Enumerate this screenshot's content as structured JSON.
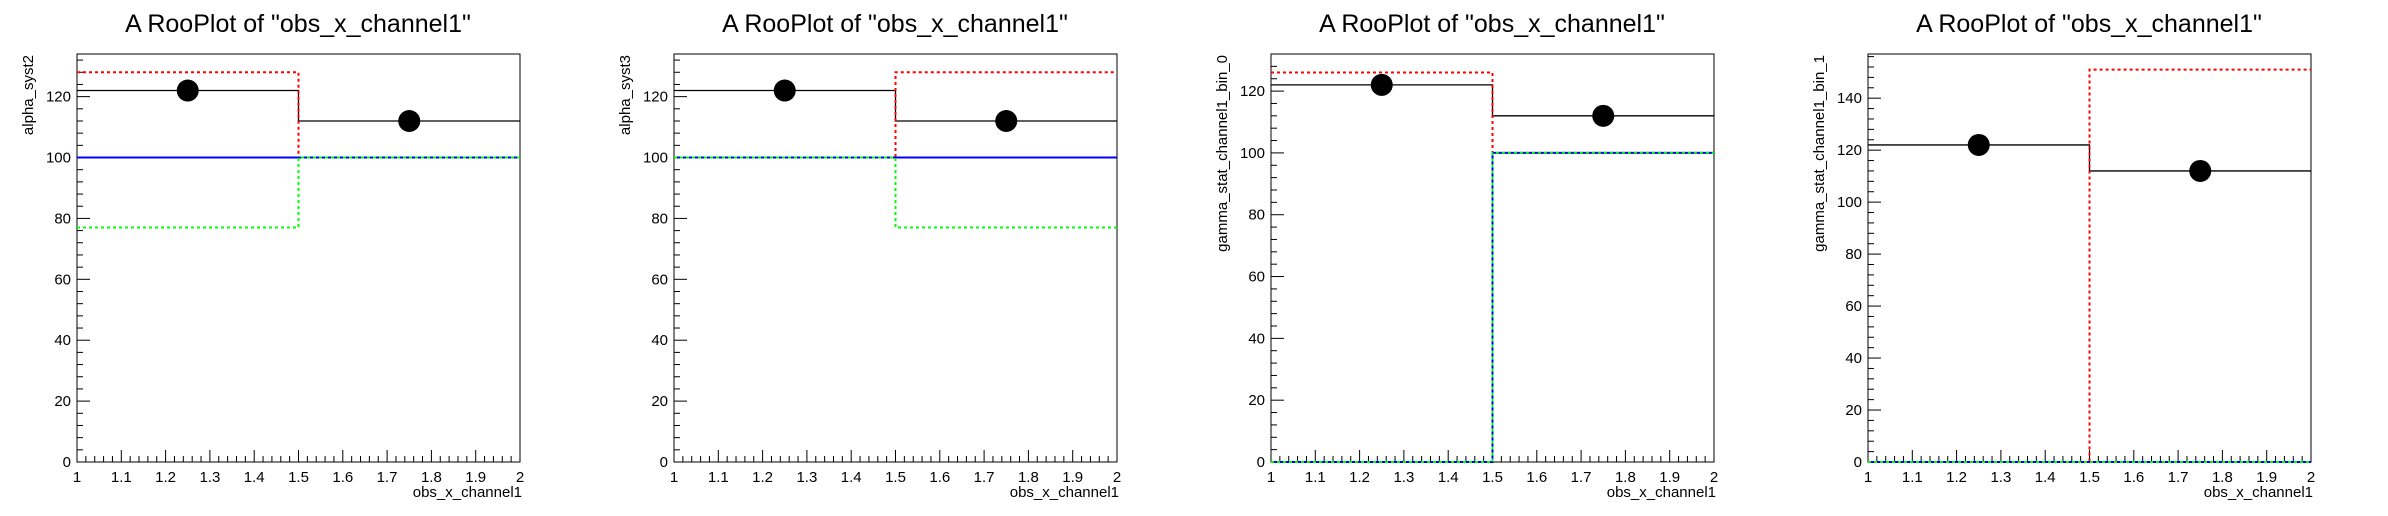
{
  "chart_data": [
    {
      "type": "line",
      "title": "A RooPlot of \"obs_x_channel1\"",
      "xlabel": "obs_x_channel1",
      "ylabel": "alpha_syst2",
      "xlim": [
        1,
        2
      ],
      "ylim": [
        0,
        134
      ],
      "x_ticks": [
        "1",
        "1.1",
        "1.2",
        "1.3",
        "1.4",
        "1.5",
        "1.6",
        "1.7",
        "1.8",
        "1.9",
        "2"
      ],
      "y_ticks": [
        "0",
        "20",
        "40",
        "60",
        "80",
        "100",
        "120"
      ],
      "series": [
        {
          "style": "black-solid",
          "color": "#000000",
          "bin_edges": [
            1,
            1.5,
            2
          ],
          "values": [
            122,
            112
          ]
        },
        {
          "style": "red-dotted",
          "color": "#ff0000",
          "bin_edges": [
            1,
            1.5,
            2
          ],
          "values": [
            128,
            100
          ]
        },
        {
          "style": "blue-solid",
          "color": "#0000ff",
          "bin_edges": [
            1,
            1.5,
            2
          ],
          "values": [
            100,
            100
          ]
        },
        {
          "style": "green-dotted",
          "color": "#00ff00",
          "bin_edges": [
            1,
            1.5,
            2
          ],
          "values": [
            77,
            100
          ]
        }
      ],
      "points": [
        {
          "x": 1.25,
          "y": 122
        },
        {
          "x": 1.75,
          "y": 112
        }
      ]
    },
    {
      "type": "line",
      "title": "A RooPlot of \"obs_x_channel1\"",
      "xlabel": "obs_x_channel1",
      "ylabel": "alpha_syst3",
      "xlim": [
        1,
        2
      ],
      "ylim": [
        0,
        134
      ],
      "x_ticks": [
        "1",
        "1.1",
        "1.2",
        "1.3",
        "1.4",
        "1.5",
        "1.6",
        "1.7",
        "1.8",
        "1.9",
        "2"
      ],
      "y_ticks": [
        "0",
        "20",
        "40",
        "60",
        "80",
        "100",
        "120"
      ],
      "series": [
        {
          "style": "black-solid",
          "color": "#000000",
          "bin_edges": [
            1,
            1.5,
            2
          ],
          "values": [
            122,
            112
          ]
        },
        {
          "style": "red-dotted",
          "color": "#ff0000",
          "bin_edges": [
            1,
            1.5,
            2
          ],
          "values": [
            100,
            128
          ]
        },
        {
          "style": "blue-solid",
          "color": "#0000ff",
          "bin_edges": [
            1,
            1.5,
            2
          ],
          "values": [
            100,
            100
          ]
        },
        {
          "style": "green-dotted",
          "color": "#00ff00",
          "bin_edges": [
            1,
            1.5,
            2
          ],
          "values": [
            100,
            77
          ]
        }
      ],
      "points": [
        {
          "x": 1.25,
          "y": 122
        },
        {
          "x": 1.75,
          "y": 112
        }
      ]
    },
    {
      "type": "line",
      "title": "A RooPlot of \"obs_x_channel1\"",
      "xlabel": "obs_x_channel1",
      "ylabel": "gamma_stat_channel1_bin_0",
      "xlim": [
        1,
        2
      ],
      "ylim": [
        0,
        132
      ],
      "x_ticks": [
        "1",
        "1.1",
        "1.2",
        "1.3",
        "1.4",
        "1.5",
        "1.6",
        "1.7",
        "1.8",
        "1.9",
        "2"
      ],
      "y_ticks": [
        "0",
        "20",
        "40",
        "60",
        "80",
        "100",
        "120"
      ],
      "series": [
        {
          "style": "black-solid",
          "color": "#000000",
          "bin_edges": [
            1,
            1.5,
            2
          ],
          "values": [
            122,
            112
          ]
        },
        {
          "style": "red-dotted",
          "color": "#ff0000",
          "bin_edges": [
            1,
            1.5,
            2
          ],
          "values": [
            126,
            100
          ]
        },
        {
          "style": "blue-solid",
          "color": "#0000ff",
          "bin_edges": [
            1,
            1.5,
            2
          ],
          "values": [
            0,
            100
          ]
        },
        {
          "style": "green-dotted",
          "color": "#00ff00",
          "bin_edges": [
            1,
            1.5,
            2
          ],
          "values": [
            0,
            100
          ]
        }
      ],
      "points": [
        {
          "x": 1.25,
          "y": 122
        },
        {
          "x": 1.75,
          "y": 112
        }
      ]
    },
    {
      "type": "line",
      "title": "A RooPlot of \"obs_x_channel1\"",
      "xlabel": "obs_x_channel1",
      "ylabel": "gamma_stat_channel1_bin_1",
      "xlim": [
        1,
        2
      ],
      "ylim": [
        0,
        157
      ],
      "x_ticks": [
        "1",
        "1.1",
        "1.2",
        "1.3",
        "1.4",
        "1.5",
        "1.6",
        "1.7",
        "1.8",
        "1.9",
        "2"
      ],
      "y_ticks": [
        "0",
        "20",
        "40",
        "60",
        "80",
        "100",
        "120",
        "140"
      ],
      "series": [
        {
          "style": "black-solid",
          "color": "#000000",
          "bin_edges": [
            1,
            1.5,
            2
          ],
          "values": [
            122,
            112
          ]
        },
        {
          "style": "red-dotted",
          "color": "#ff0000",
          "bin_edges": [
            1,
            1.5,
            2
          ],
          "values": [
            0,
            151
          ]
        },
        {
          "style": "blue-solid",
          "color": "#0000ff",
          "bin_edges": [
            1,
            1.5,
            2
          ],
          "values": [
            0,
            0
          ]
        },
        {
          "style": "green-dotted",
          "color": "#00ff00",
          "bin_edges": [
            1,
            1.5,
            2
          ],
          "values": [
            0,
            0
          ]
        }
      ],
      "points": [
        {
          "x": 1.25,
          "y": 122
        },
        {
          "x": 1.75,
          "y": 112
        }
      ]
    }
  ]
}
